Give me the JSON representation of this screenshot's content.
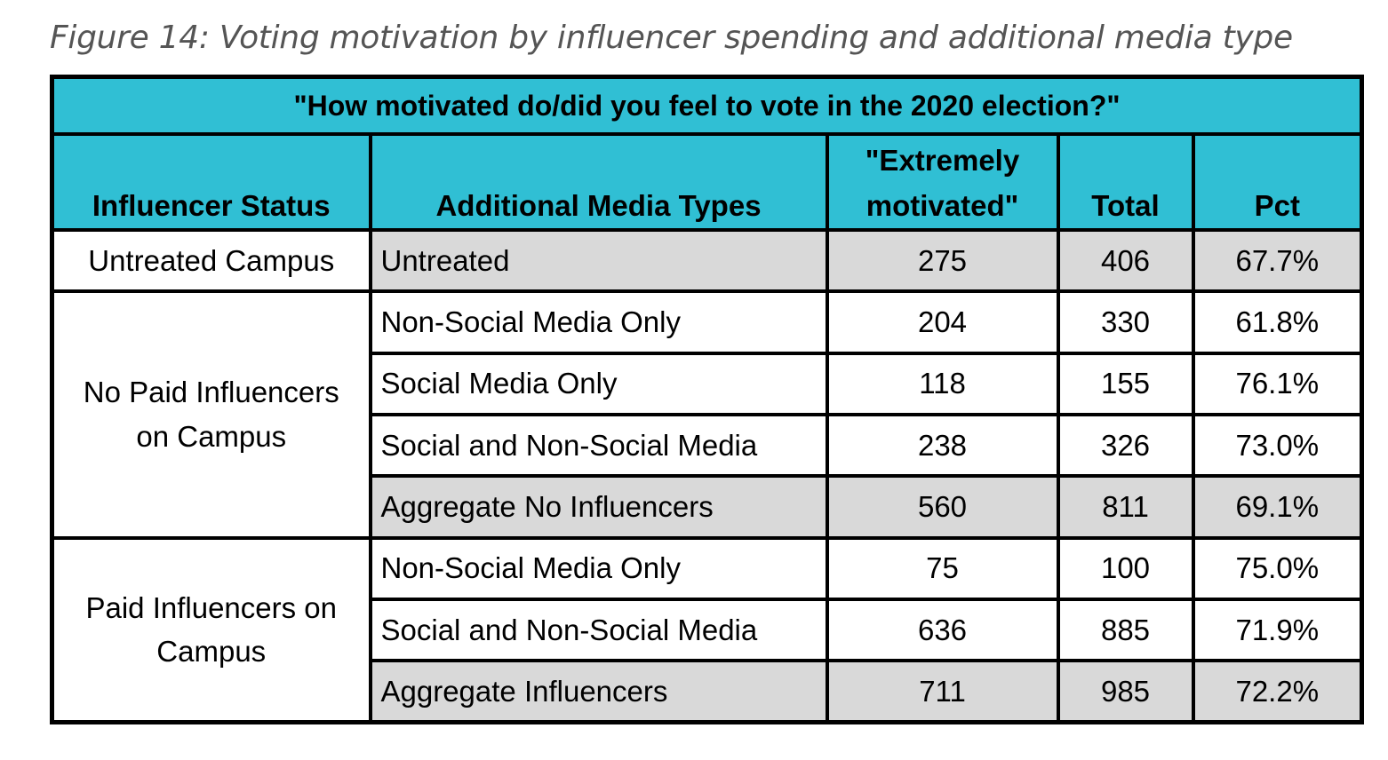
{
  "caption": "Figure 14: Voting motivation by influencer spending and additional media type",
  "table": {
    "title": "\"How motivated do/did you feel to vote in the 2020 election?\"",
    "headers": {
      "status": "Influencer Status",
      "media": "Additional Media Types",
      "extreme_line1": "\"Extremely",
      "extreme_line2": "motivated\"",
      "total": "Total",
      "pct": "Pct"
    },
    "groups": [
      {
        "status": "Untreated Campus",
        "rows": [
          {
            "media": "Untreated",
            "extreme": "275",
            "total": "406",
            "pct": "67.7%",
            "shaded": true
          }
        ]
      },
      {
        "status": "No Paid Influencers on Campus",
        "rows": [
          {
            "media": "Non-Social Media Only",
            "extreme": "204",
            "total": "330",
            "pct": "61.8%",
            "shaded": false
          },
          {
            "media": "Social Media Only",
            "extreme": "118",
            "total": "155",
            "pct": "76.1%",
            "shaded": false
          },
          {
            "media": "Social and Non-Social Media",
            "extreme": "238",
            "total": "326",
            "pct": "73.0%",
            "shaded": false
          },
          {
            "media": "Aggregate No Influencers",
            "extreme": "560",
            "total": "811",
            "pct": "69.1%",
            "shaded": true
          }
        ]
      },
      {
        "status": "Paid Influencers on Campus",
        "rows": [
          {
            "media": "Non-Social Media Only",
            "extreme": "75",
            "total": "100",
            "pct": "75.0%",
            "shaded": false
          },
          {
            "media": "Social and Non-Social Media",
            "extreme": "636",
            "total": "885",
            "pct": "71.9%",
            "shaded": false
          },
          {
            "media": "Aggregate Influencers",
            "extreme": "711",
            "total": "985",
            "pct": "72.2%",
            "shaded": true
          }
        ]
      }
    ],
    "colors": {
      "header_bg": "#30bfd4",
      "shade_bg": "#d9d9d9"
    }
  }
}
